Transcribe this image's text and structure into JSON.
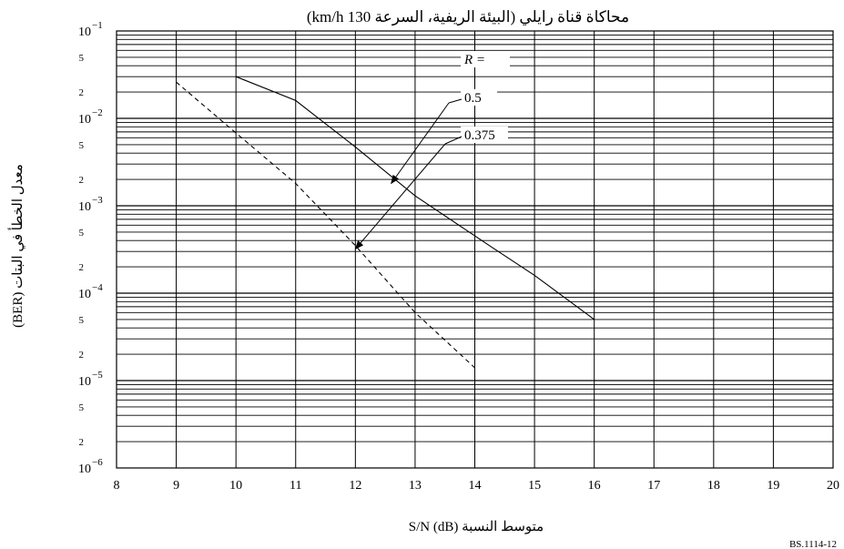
{
  "chart_data": {
    "type": "line",
    "title": "محاكاة قناة رايلي (البيئة الريفية، السرعة 130 km/h)",
    "xlabel": "متوسط النسبة S/N (dB)",
    "ylabel": "معدل الخطأ في البتات (BER)",
    "xlim": [
      8,
      20
    ],
    "ylim": [
      1e-06,
      0.1
    ],
    "yscale": "log",
    "grid": true,
    "x_ticks": [
      "8",
      "9",
      "10",
      "11",
      "12",
      "13",
      "14",
      "15",
      "16",
      "17",
      "18",
      "19",
      "20"
    ],
    "y_major_ticks": [
      {
        "value": 0.1,
        "base": "10",
        "exp": "−1"
      },
      {
        "value": 0.01,
        "base": "10",
        "exp": "−2"
      },
      {
        "value": 0.001,
        "base": "10",
        "exp": "−3"
      },
      {
        "value": 0.0001,
        "base": "10",
        "exp": "−4"
      },
      {
        "value": 1e-05,
        "base": "10",
        "exp": "−5"
      },
      {
        "value": 1e-06,
        "base": "10",
        "exp": "−6"
      }
    ],
    "y_minor_labels": [
      {
        "value": 0.05,
        "label": "5"
      },
      {
        "value": 0.02,
        "label": "2"
      },
      {
        "value": 0.005,
        "label": "5"
      },
      {
        "value": 0.002,
        "label": "2"
      },
      {
        "value": 0.0005,
        "label": "5"
      },
      {
        "value": 0.0002,
        "label": "2"
      },
      {
        "value": 5e-05,
        "label": "5"
      },
      {
        "value": 2e-05,
        "label": "2"
      },
      {
        "value": 5e-06,
        "label": "5"
      },
      {
        "value": 2e-06,
        "label": "2"
      }
    ],
    "legend_header": "R =",
    "series": [
      {
        "name": "0.5",
        "style": "solid",
        "x": [
          10,
          11,
          12,
          13,
          14.3,
          15,
          16
        ],
        "y": [
          0.03,
          0.016,
          0.0047,
          0.0013,
          0.00033,
          0.00016,
          5e-05
        ]
      },
      {
        "name": "0.375",
        "style": "dashed",
        "x": [
          9,
          10,
          11,
          12,
          13,
          14
        ],
        "y": [
          0.026,
          0.0068,
          0.0018,
          0.00035,
          6e-05,
          1.4e-05
        ]
      }
    ],
    "annotations": [
      {
        "series": "0.5",
        "arrow_to": {
          "x": 12.6,
          "y": 0.0018
        }
      },
      {
        "series": "0.375",
        "arrow_to": {
          "x": 12.0,
          "y": 0.00032
        }
      }
    ],
    "reference": "BS.1114-12"
  }
}
